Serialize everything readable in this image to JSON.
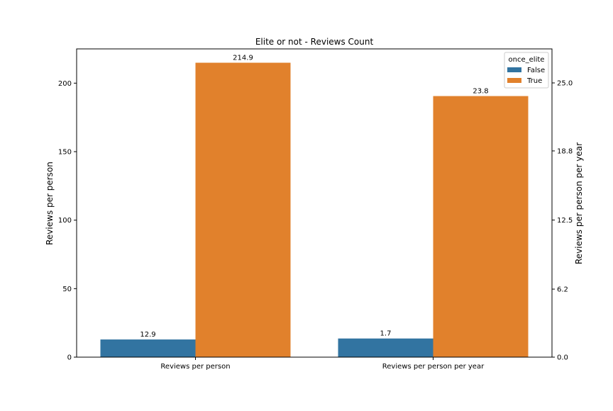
{
  "chart_data": {
    "type": "bar",
    "title": "Elite or not - Reviews Count",
    "categories": [
      "Reviews per person",
      "Reviews per person per year"
    ],
    "ylabel_left": "Reviews per person",
    "ylabel_right": "Reviews per person per year",
    "ylim_left": [
      0,
      225
    ],
    "ylim_right": [
      0,
      28.1
    ],
    "yticks_left": [
      "0",
      "50",
      "100",
      "150",
      "200"
    ],
    "yticks_right": [
      "0.0",
      "6.2",
      "12.5",
      "18.8",
      "25.0"
    ],
    "legend": {
      "title": "once_elite",
      "placement": "top-right",
      "entries": [
        "False",
        "True"
      ]
    },
    "series": [
      {
        "name": "False",
        "color": "#3274a1",
        "values": [
          12.9,
          1.7
        ],
        "labels": [
          "12.9",
          "1.7"
        ],
        "axis": [
          "left",
          "right"
        ]
      },
      {
        "name": "True",
        "color": "#e1812c",
        "values": [
          214.9,
          23.8
        ],
        "labels": [
          "214.9",
          "23.8"
        ],
        "axis": [
          "left",
          "right"
        ]
      }
    ]
  }
}
